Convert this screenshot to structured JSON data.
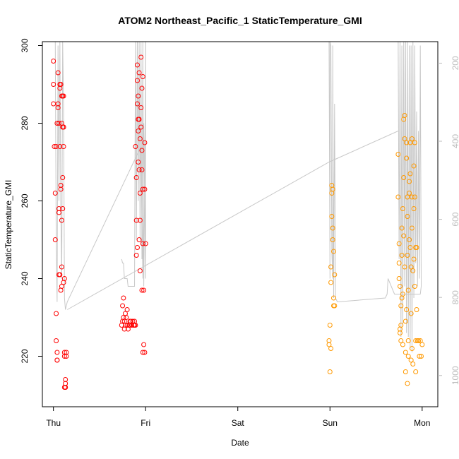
{
  "chart_data": {
    "type": "scatter",
    "title": "ATOM2 Northeast_Pacific_1 StaticTemperature_GMI",
    "xlabel": "Date",
    "ylabel": "StaticTemperature_GMI",
    "x_unit": "days since Thu 00:00",
    "xlim": [
      -0.12,
      4.17
    ],
    "ylim": [
      207,
      301
    ],
    "x_ticks": [
      {
        "label": "Thu",
        "value": 0
      },
      {
        "label": "Fri",
        "value": 1
      },
      {
        "label": "Sat",
        "value": 2
      },
      {
        "label": "Sun",
        "value": 3
      },
      {
        "label": "Mon",
        "value": 4
      }
    ],
    "y_ticks": [
      220,
      240,
      260,
      280,
      300
    ],
    "right_axis": {
      "reversed": true,
      "lim": [
        1080,
        145
      ],
      "ticks": [
        200,
        400,
        600,
        800,
        1000
      ],
      "color": "#bdbdbd"
    },
    "grid": false,
    "series": [
      {
        "color": "#ff0000",
        "marker": "open-circle",
        "points": [
          [
            0.0,
            296
          ],
          [
            0.0,
            290
          ],
          [
            0.0,
            285
          ],
          [
            0.01,
            274
          ],
          [
            0.02,
            262
          ],
          [
            0.02,
            250
          ],
          [
            0.03,
            231
          ],
          [
            0.03,
            224
          ],
          [
            0.04,
            219
          ],
          [
            0.04,
            221
          ],
          [
            0.05,
            285
          ],
          [
            0.05,
            293
          ],
          [
            0.06,
            280
          ],
          [
            0.06,
            258
          ],
          [
            0.07,
            274
          ],
          [
            0.07,
            241
          ],
          [
            0.07,
            289
          ],
          [
            0.08,
            290
          ],
          [
            0.08,
            263
          ],
          [
            0.09,
            255
          ],
          [
            0.09,
            238
          ],
          [
            0.09,
            243
          ],
          [
            0.09,
            287
          ],
          [
            0.1,
            258
          ],
          [
            0.1,
            279
          ],
          [
            0.1,
            266
          ],
          [
            0.11,
            239
          ],
          [
            0.11,
            279
          ],
          [
            0.11,
            274
          ],
          [
            0.11,
            287
          ],
          [
            0.12,
            240
          ],
          [
            0.12,
            221
          ],
          [
            0.12,
            220
          ],
          [
            0.13,
            213
          ],
          [
            0.13,
            214
          ],
          [
            0.13,
            212
          ],
          [
            0.14,
            220
          ],
          [
            0.14,
            221
          ],
          [
            0.05,
            284
          ],
          [
            0.04,
            280
          ],
          [
            0.08,
            237
          ],
          [
            0.06,
            241
          ],
          [
            0.04,
            219
          ],
          [
            0.07,
            290
          ],
          [
            0.09,
            280
          ],
          [
            0.1,
            287
          ],
          [
            0.12,
            212
          ],
          [
            0.13,
            212
          ],
          [
            0.11,
            279
          ],
          [
            0.03,
            274
          ],
          [
            0.06,
            257
          ],
          [
            0.08,
            264
          ]
        ],
        "line": [
          [
            0.0,
            301
          ],
          [
            0.02,
            301
          ],
          [
            0.03,
            250
          ],
          [
            0.04,
            234
          ],
          [
            0.05,
            300
          ],
          [
            0.06,
            260
          ],
          [
            0.07,
            301
          ],
          [
            0.08,
            258
          ],
          [
            0.09,
            240
          ],
          [
            0.1,
            301
          ],
          [
            0.11,
            285
          ],
          [
            0.12,
            235
          ],
          [
            0.13,
            232
          ],
          [
            0.15,
            234
          ],
          [
            0.95,
            274
          ],
          [
            0.97,
            240
          ],
          [
            0.98,
            280
          ],
          [
            1.0,
            240
          ],
          [
            1.0,
            301
          ]
        ]
      },
      {
        "color": "#ff0000",
        "marker": "open-circle",
        "points": [
          [
            0.74,
            228
          ],
          [
            0.75,
            229
          ],
          [
            0.75,
            233
          ],
          [
            0.76,
            235
          ],
          [
            0.76,
            230
          ],
          [
            0.77,
            227
          ],
          [
            0.77,
            229
          ],
          [
            0.78,
            231
          ],
          [
            0.78,
            228
          ],
          [
            0.79,
            230
          ],
          [
            0.8,
            232
          ],
          [
            0.8,
            228
          ],
          [
            0.81,
            227
          ],
          [
            0.82,
            228
          ],
          [
            0.83,
            229
          ],
          [
            0.83,
            228
          ],
          [
            0.84,
            229
          ],
          [
            0.85,
            228
          ],
          [
            0.86,
            229
          ],
          [
            0.87,
            228
          ],
          [
            0.88,
            229
          ],
          [
            0.89,
            228
          ],
          [
            0.89,
            274
          ],
          [
            0.9,
            266
          ],
          [
            0.9,
            255
          ],
          [
            0.9,
            246
          ],
          [
            0.91,
            291
          ],
          [
            0.91,
            295
          ],
          [
            0.91,
            285
          ],
          [
            0.92,
            270
          ],
          [
            0.92,
            281
          ],
          [
            0.92,
            287
          ],
          [
            0.93,
            281
          ],
          [
            0.93,
            268
          ],
          [
            0.93,
            293
          ],
          [
            0.93,
            250
          ],
          [
            0.94,
            276
          ],
          [
            0.94,
            262
          ],
          [
            0.94,
            242
          ],
          [
            0.95,
            297
          ],
          [
            0.95,
            284
          ],
          [
            0.95,
            279
          ],
          [
            0.96,
            289
          ],
          [
            0.96,
            273
          ],
          [
            0.96,
            268
          ],
          [
            0.97,
            249
          ],
          [
            0.97,
            263
          ],
          [
            0.97,
            292
          ],
          [
            0.98,
            237
          ],
          [
            0.98,
            223
          ],
          [
            0.99,
            221
          ],
          [
            0.99,
            263
          ],
          [
            0.99,
            275
          ],
          [
            1.0,
            249
          ],
          [
            0.96,
            237
          ],
          [
            0.97,
            221
          ],
          [
            0.94,
            255
          ],
          [
            0.92,
            278
          ],
          [
            0.88,
            228
          ],
          [
            0.91,
            248
          ]
        ],
        "line": [
          [
            0.74,
            245
          ],
          [
            0.75,
            244
          ],
          [
            0.76,
            244
          ],
          [
            0.77,
            240
          ],
          [
            0.78,
            240
          ],
          [
            0.8,
            240
          ],
          [
            0.81,
            238
          ],
          [
            0.88,
            238
          ],
          [
            0.89,
            301
          ],
          [
            0.9,
            250
          ],
          [
            0.91,
            301
          ],
          [
            0.92,
            260
          ],
          [
            0.93,
            301
          ],
          [
            0.94,
            250
          ],
          [
            0.95,
            301
          ],
          [
            0.96,
            245
          ],
          [
            0.97,
            301
          ],
          [
            0.98,
            238
          ],
          [
            0.99,
            265
          ],
          [
            1.0,
            301
          ]
        ]
      },
      {
        "color": "#ff9900",
        "marker": "open-circle",
        "points": [
          [
            2.99,
            224
          ],
          [
            2.99,
            223
          ],
          [
            3.0,
            228
          ],
          [
            3.0,
            216
          ],
          [
            3.01,
            222
          ],
          [
            3.01,
            239
          ],
          [
            3.01,
            243
          ],
          [
            3.02,
            256
          ],
          [
            3.02,
            262
          ],
          [
            3.02,
            264
          ],
          [
            3.03,
            263
          ],
          [
            3.03,
            250
          ],
          [
            3.03,
            253
          ],
          [
            3.04,
            247
          ],
          [
            3.04,
            235
          ],
          [
            3.04,
            233
          ],
          [
            3.05,
            241
          ],
          [
            3.05,
            233
          ]
        ],
        "line": [
          [
            2.99,
            301
          ],
          [
            3.0,
            240
          ],
          [
            3.0,
            301
          ],
          [
            3.01,
            300
          ],
          [
            3.02,
            247
          ],
          [
            3.03,
            240
          ],
          [
            3.03,
            300
          ],
          [
            3.04,
            235
          ],
          [
            3.05,
            285
          ],
          [
            3.06,
            235
          ],
          [
            3.08,
            234
          ],
          [
            3.6,
            235
          ],
          [
            3.62,
            236
          ],
          [
            3.63,
            240
          ],
          [
            3.7,
            236
          ],
          [
            3.8,
            236
          ],
          [
            3.98,
            236
          ],
          [
            3.99,
            238
          ]
        ]
      },
      {
        "color": "#ff9900",
        "marker": "open-circle",
        "points": [
          [
            3.74,
            272
          ],
          [
            3.74,
            261
          ],
          [
            3.75,
            249
          ],
          [
            3.75,
            244
          ],
          [
            3.76,
            238
          ],
          [
            3.76,
            227
          ],
          [
            3.76,
            226
          ],
          [
            3.77,
            233
          ],
          [
            3.77,
            228
          ],
          [
            3.77,
            224
          ],
          [
            3.78,
            235
          ],
          [
            3.78,
            246
          ],
          [
            3.78,
            253
          ],
          [
            3.79,
            258
          ],
          [
            3.79,
            236
          ],
          [
            3.79,
            223
          ],
          [
            3.8,
            281
          ],
          [
            3.8,
            266
          ],
          [
            3.8,
            251
          ],
          [
            3.81,
            276
          ],
          [
            3.81,
            282
          ],
          [
            3.81,
            243
          ],
          [
            3.82,
            229
          ],
          [
            3.82,
            216
          ],
          [
            3.82,
            221
          ],
          [
            3.83,
            232
          ],
          [
            3.83,
            271
          ],
          [
            3.83,
            275
          ],
          [
            3.84,
            261
          ],
          [
            3.84,
            256
          ],
          [
            3.84,
            246
          ],
          [
            3.85,
            237
          ],
          [
            3.85,
            224
          ],
          [
            3.85,
            220
          ],
          [
            3.86,
            265
          ],
          [
            3.86,
            262
          ],
          [
            3.86,
            250
          ],
          [
            3.87,
            275
          ],
          [
            3.87,
            267
          ],
          [
            3.87,
            248
          ],
          [
            3.88,
            243
          ],
          [
            3.88,
            231
          ],
          [
            3.88,
            219
          ],
          [
            3.89,
            253
          ],
          [
            3.89,
            261
          ],
          [
            3.89,
            276
          ],
          [
            3.9,
            242
          ],
          [
            3.9,
            218
          ],
          [
            3.91,
            269
          ],
          [
            3.91,
            258
          ],
          [
            3.91,
            245
          ],
          [
            3.92,
            275
          ],
          [
            3.92,
            261
          ],
          [
            3.92,
            238
          ],
          [
            3.93,
            224
          ],
          [
            3.93,
            216
          ],
          [
            3.94,
            248
          ],
          [
            3.94,
            232
          ],
          [
            3.95,
            224
          ],
          [
            3.96,
            224
          ],
          [
            3.97,
            220
          ],
          [
            3.98,
            224
          ],
          [
            3.99,
            220
          ],
          [
            4.0,
            223
          ],
          [
            3.84,
            213
          ],
          [
            3.75,
            240
          ],
          [
            3.89,
            222
          ],
          [
            3.93,
            248
          ]
        ],
        "line": [
          [
            3.74,
            301
          ],
          [
            3.75,
            245
          ],
          [
            3.76,
            301
          ],
          [
            3.77,
            225
          ],
          [
            3.78,
            300
          ],
          [
            3.79,
            228
          ],
          [
            3.8,
            301
          ],
          [
            3.81,
            238
          ],
          [
            3.82,
            301
          ],
          [
            3.83,
            226
          ],
          [
            3.84,
            301
          ],
          [
            3.85,
            225
          ],
          [
            3.86,
            300
          ],
          [
            3.87,
            222
          ],
          [
            3.88,
            300
          ],
          [
            3.89,
            221
          ],
          [
            3.9,
            301
          ],
          [
            3.91,
            235
          ],
          [
            3.92,
            300
          ],
          [
            3.93,
            244
          ],
          [
            3.94,
            283
          ],
          [
            3.95,
            238
          ],
          [
            3.96,
            278
          ],
          [
            3.97,
            240
          ],
          [
            3.98,
            300
          ],
          [
            3.99,
            238
          ]
        ]
      }
    ],
    "reference_line": {
      "color": "#c8c8c8",
      "points": [
        [
          0.15,
          232
        ],
        [
          2.99,
          270
        ],
        [
          3.74,
          278
        ]
      ]
    }
  }
}
